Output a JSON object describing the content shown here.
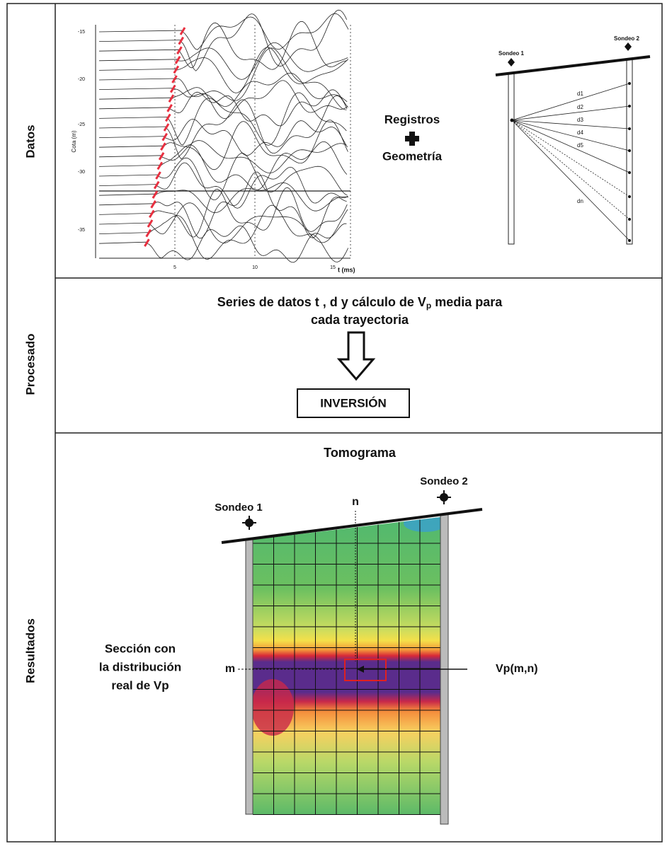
{
  "rows": {
    "datos": "Datos",
    "procesado": "Procesado",
    "resultados": "Resultados"
  },
  "seismic": {
    "y_axis_label": "Cota (m)",
    "x_axis_label": "t (ms)",
    "y_tick_labels": [
      "-15",
      "-20",
      "-25",
      "-30",
      "-35"
    ],
    "x_tick_labels": [
      "5",
      "10",
      "15"
    ]
  },
  "datos_text": {
    "line1": "Registros",
    "line2": "Geometría"
  },
  "geometry": {
    "sondeo1": "Sondeo 1",
    "sondeo2": "Sondeo 2",
    "distances": [
      "d1",
      "d2",
      "d3",
      "d4",
      "d5",
      "dn"
    ]
  },
  "procesado": {
    "line1_a": "Series de datos t , d  y cálculo de V",
    "line1_sub": "p",
    "line1_b": " media para",
    "line2": "cada trayectoria",
    "box": "INVERSIÓN"
  },
  "resultados": {
    "title": "Tomograma",
    "sondeo1": "Sondeo 1",
    "sondeo2": "Sondeo 2",
    "n": "n",
    "m": "m",
    "caption": [
      "Sección con",
      "la distribución",
      "real de Vp"
    ],
    "cell": "Vp(m,n)"
  }
}
